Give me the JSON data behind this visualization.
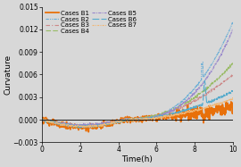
{
  "title": "",
  "xlabel": "Time(h)",
  "ylabel": "Curvature",
  "xlim": [
    0,
    10
  ],
  "ylim": [
    -0.003,
    0.015
  ],
  "yticks": [
    -0.003,
    0,
    0.003,
    0.006,
    0.009,
    0.012,
    0.015
  ],
  "xticks": [
    0,
    2,
    4,
    6,
    8,
    10
  ],
  "series": [
    {
      "label": "Cases B1",
      "color": "#E8700A",
      "lw": 1.3
    },
    {
      "label": "Cases B2",
      "color": "#6BAED6",
      "lw": 0.8
    },
    {
      "label": "Cases B3",
      "color": "#CC8888",
      "lw": 0.8
    },
    {
      "label": "Cases B4",
      "color": "#99BB66",
      "lw": 0.8
    },
    {
      "label": "Cases B5",
      "color": "#9988CC",
      "lw": 0.8
    },
    {
      "label": "Cases B6",
      "color": "#55AACC",
      "lw": 0.8
    },
    {
      "label": "Cases B7",
      "color": "#F0B878",
      "lw": 0.8
    }
  ],
  "background_color": "#d8d8d8",
  "legend_fontsize": 5.0,
  "axis_fontsize": 6.5,
  "tick_fontsize": 5.5
}
